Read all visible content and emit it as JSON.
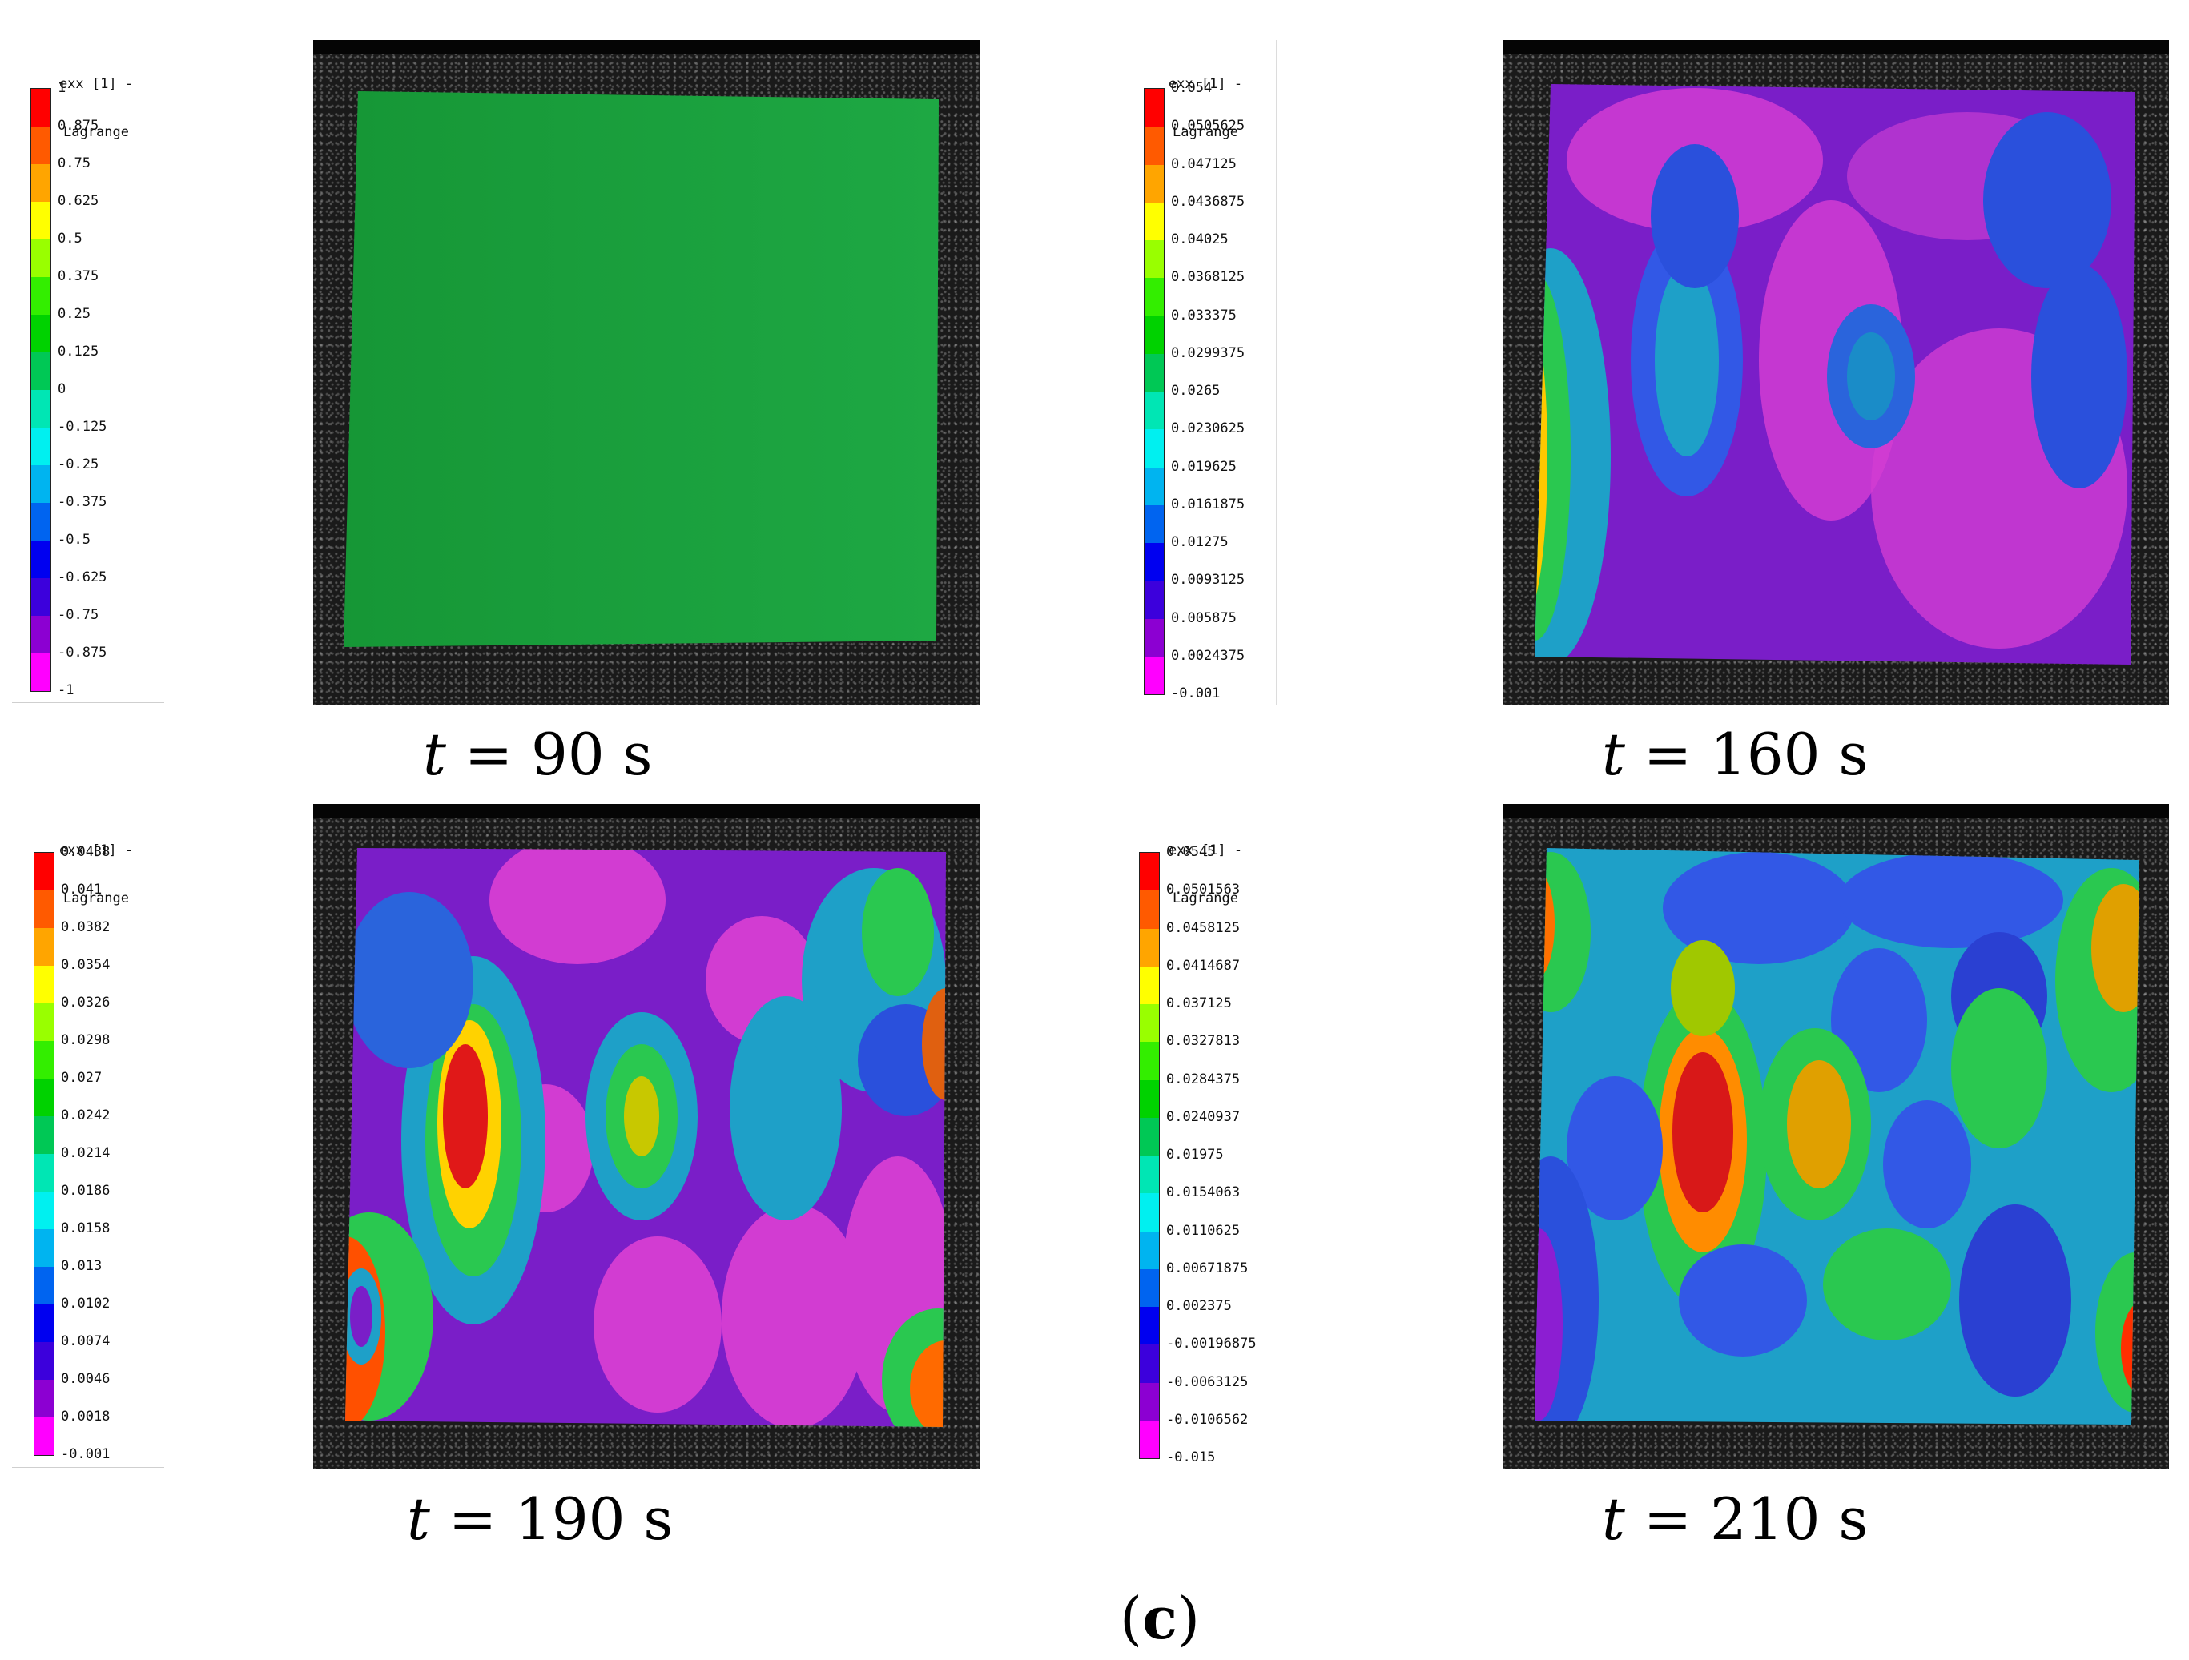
{
  "panels": [
    {
      "colorbar_title_line1": "exx [1] -",
      "colorbar_title_line2": "Lagrange",
      "ticks": [
        "1",
        "0.875",
        "0.75",
        "0.625",
        "0.5",
        "0.375",
        "0.25",
        "0.125",
        "0",
        "-0.125",
        "-0.25",
        "-0.375",
        "-0.5",
        "-0.625",
        "-0.75",
        "-0.875",
        "-1"
      ],
      "caption_var": "t",
      "caption_rest": " = 90 s"
    },
    {
      "colorbar_title_line1": "exx [1] -",
      "colorbar_title_line2": "Lagrange",
      "ticks": [
        "0.054",
        "0.0505625",
        "0.047125",
        "0.0436875",
        "0.04025",
        "0.0368125",
        "0.033375",
        "0.0299375",
        "0.0265",
        "0.0230625",
        "0.019625",
        "0.0161875",
        "0.01275",
        "0.0093125",
        "0.005875",
        "0.0024375",
        "-0.001"
      ],
      "caption_var": "t",
      "caption_rest": " = 160 s"
    },
    {
      "colorbar_title_line1": "exx [1] -",
      "colorbar_title_line2": "Lagrange",
      "ticks": [
        "0.0438",
        "0.041",
        "0.0382",
        "0.0354",
        "0.0326",
        "0.0298",
        "0.027",
        "0.0242",
        "0.0214",
        "0.0186",
        "0.0158",
        "0.013",
        "0.0102",
        "0.0074",
        "0.0046",
        "0.0018",
        "-0.001"
      ],
      "caption_var": "t",
      "caption_rest": " = 190 s"
    },
    {
      "colorbar_title_line1": "exx [1] -",
      "colorbar_title_line2": "Lagrange",
      "ticks": [
        "0.0545",
        "0.0501563",
        "0.0458125",
        "0.0414687",
        "0.037125",
        "0.0327813",
        "0.0284375",
        "0.0240937",
        "0.01975",
        "0.0154063",
        "0.0110625",
        "0.00671875",
        "0.002375",
        "-0.00196875",
        "-0.0063125",
        "-0.0106562",
        "-0.015"
      ],
      "caption_var": "t",
      "caption_rest": " = 210 s"
    }
  ],
  "colormap": [
    "#ff0000",
    "#ff5a00",
    "#ffa500",
    "#ffff00",
    "#99ff00",
    "#33ee00",
    "#00d200",
    "#00c855",
    "#00e6b4",
    "#00f0f0",
    "#00b4f0",
    "#0064f0",
    "#0000f0",
    "#3c00dc",
    "#8c00d2",
    "#ff00ff"
  ],
  "subfigure_open": "(",
  "subfigure_letter": "c",
  "subfigure_close": ")"
}
